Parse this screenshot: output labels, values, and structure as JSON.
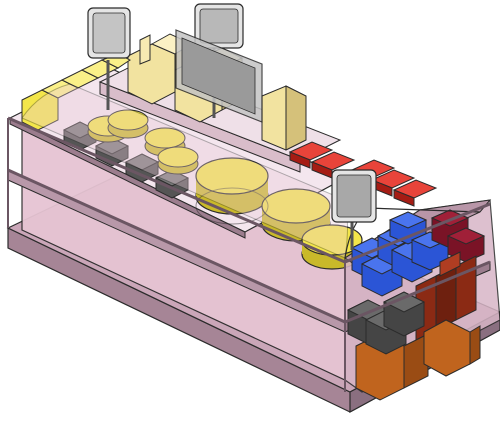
{
  "scene": {
    "subject": "isometric-cheese-display-counter",
    "palette": {
      "outline": "#2b2b2b",
      "frame": "#8a6f80",
      "frame_light": "#c7a9ba",
      "glass": "#e8c9d8",
      "glass_dark": "#c9a3b6",
      "base": "#b08ea1",
      "cheese_yellow": "#f3e64a",
      "cheese_shade": "#c9b92a",
      "wedge_cream": "#f2e3a0",
      "wedge_shade": "#d5c17a",
      "dark_block": "#555555",
      "red_pack": "#d8281e",
      "blue_block": "#2b55d6",
      "maroon_block": "#7a1326",
      "bottle": "#8b2a14",
      "crate": "#c0641e",
      "sign": "#8c8c8c"
    },
    "icons": [
      "price-sign",
      "price-sign",
      "price-sign"
    ]
  }
}
